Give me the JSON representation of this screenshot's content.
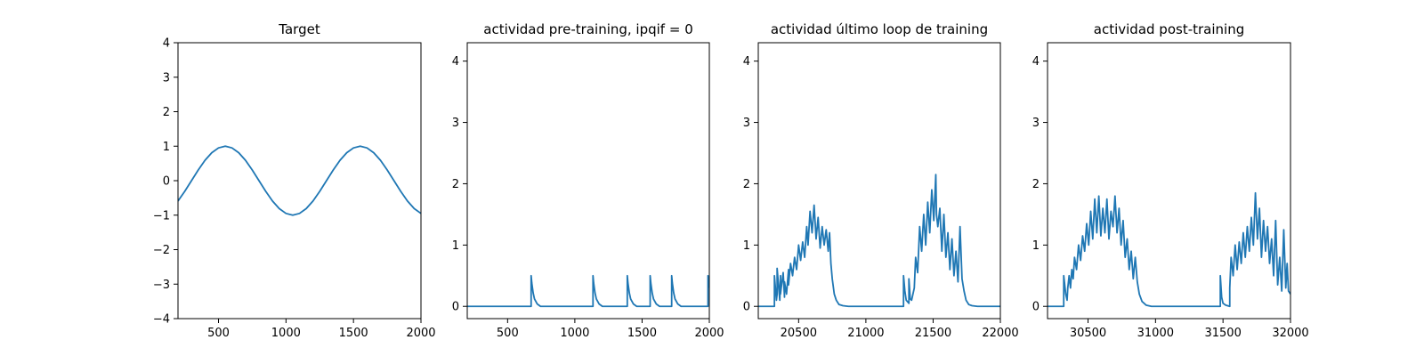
{
  "colors": {
    "line": "#1f77b4",
    "axes": "#000000",
    "background": "#ffffff"
  },
  "chart_data": [
    {
      "type": "line",
      "title": "Target",
      "xlabel": "",
      "ylabel": "",
      "xlim": [
        200,
        2000
      ],
      "ylim": [
        -4,
        4
      ],
      "xticks": [
        500,
        1000,
        1500,
        2000
      ],
      "xtick_labels": [
        "500",
        "1000",
        "1500",
        "2000"
      ],
      "yticks": [
        -4,
        -3,
        -2,
        -1,
        0,
        1,
        2,
        3,
        4
      ],
      "ytick_labels": [
        "−4",
        "−3",
        "−2",
        "−1",
        "0",
        "1",
        "2",
        "3",
        "4"
      ],
      "grid": false,
      "series": [
        {
          "x": [
            200,
            250,
            300,
            350,
            400,
            450,
            500,
            550,
            600,
            650,
            700,
            750,
            800,
            850,
            900,
            950,
            1000,
            1050,
            1100,
            1150,
            1200,
            1250,
            1300,
            1350,
            1400,
            1450,
            1500,
            1550,
            1600,
            1650,
            1700,
            1750,
            1800,
            1850,
            1900,
            1950,
            2000
          ],
          "y": [
            -0.59,
            -0.31,
            0.0,
            0.31,
            0.59,
            0.81,
            0.95,
            1.0,
            0.95,
            0.81,
            0.59,
            0.31,
            0.0,
            -0.31,
            -0.59,
            -0.81,
            -0.95,
            -1.0,
            -0.95,
            -0.81,
            -0.59,
            -0.31,
            0.0,
            0.31,
            0.59,
            0.81,
            0.95,
            1.0,
            0.95,
            0.81,
            0.59,
            0.31,
            0.0,
            -0.31,
            -0.59,
            -0.81,
            -0.95
          ]
        }
      ]
    },
    {
      "type": "line",
      "title": "actividad pre-training, ipqif = 0",
      "xlabel": "",
      "ylabel": "",
      "xlim": [
        200,
        2000
      ],
      "ylim": [
        -0.2,
        4.3
      ],
      "xticks": [
        500,
        1000,
        1500,
        2000
      ],
      "xtick_labels": [
        "500",
        "1000",
        "1500",
        "2000"
      ],
      "yticks": [
        0,
        1,
        2,
        3,
        4
      ],
      "ytick_labels": [
        "0",
        "1",
        "2",
        "3",
        "4"
      ],
      "grid": false,
      "series": [
        {
          "x": [
            200,
            675,
            675,
            680,
            690,
            700,
            720,
            745,
            1135,
            1135,
            1140,
            1150,
            1160,
            1180,
            1205,
            1390,
            1390,
            1395,
            1405,
            1415,
            1435,
            1460,
            1560,
            1560,
            1565,
            1575,
            1585,
            1605,
            1630,
            1720,
            1720,
            1725,
            1735,
            1745,
            1765,
            1790,
            1990,
            1990,
            1995,
            2000
          ],
          "y": [
            0,
            0,
            0.5,
            0.38,
            0.22,
            0.12,
            0.04,
            0.0,
            0,
            0.5,
            0.38,
            0.22,
            0.12,
            0.04,
            0.0,
            0,
            0.5,
            0.38,
            0.22,
            0.12,
            0.04,
            0.0,
            0,
            0.5,
            0.38,
            0.22,
            0.12,
            0.04,
            0.0,
            0,
            0.5,
            0.38,
            0.22,
            0.12,
            0.04,
            0.0,
            0,
            0.5,
            0.4,
            0.3
          ]
        }
      ]
    },
    {
      "type": "line",
      "title": "actividad último loop de training",
      "xlabel": "",
      "ylabel": "",
      "xlim": [
        20200,
        22000
      ],
      "ylim": [
        -0.2,
        4.3
      ],
      "xticks": [
        20500,
        21000,
        21500,
        22000
      ],
      "xtick_labels": [
        "20500",
        "21000",
        "21500",
        "22000"
      ],
      "yticks": [
        0,
        1,
        2,
        3,
        4
      ],
      "ytick_labels": [
        "0",
        "1",
        "2",
        "3",
        "4"
      ],
      "grid": false,
      "series": [
        {
          "x": [
            20200,
            20320,
            20320,
            20335,
            20340,
            20340,
            20360,
            20365,
            20365,
            20385,
            20395,
            20395,
            20410,
            20425,
            20425,
            20440,
            20455,
            20470,
            20485,
            20500,
            20515,
            20530,
            20545,
            20560,
            20570,
            20585,
            20600,
            20615,
            20630,
            20645,
            20660,
            20675,
            20690,
            20705,
            20720,
            20730,
            20740,
            20750,
            20765,
            20780,
            20800,
            20830,
            20870,
            21280,
            21280,
            21290,
            21300,
            21320,
            21320,
            21330,
            21340,
            21360,
            21370,
            21385,
            21400,
            21415,
            21430,
            21445,
            21460,
            21475,
            21490,
            21505,
            21520,
            21525,
            21535,
            21550,
            21565,
            21580,
            21595,
            21610,
            21625,
            21640,
            21655,
            21670,
            21685,
            21700,
            21715,
            21730,
            21745,
            21765,
            21790,
            21830,
            22000
          ],
          "y": [
            0,
            0,
            0.5,
            0.1,
            0.2,
            0.62,
            0.1,
            0.5,
            0.2,
            0.55,
            0.15,
            0.4,
            0.2,
            0.6,
            0.35,
            0.7,
            0.5,
            0.8,
            0.6,
            1.0,
            0.75,
            1.05,
            0.8,
            1.3,
            1.0,
            1.55,
            1.2,
            1.65,
            1.1,
            1.45,
            0.95,
            1.3,
            1.0,
            1.25,
            0.9,
            1.2,
            0.7,
            0.45,
            0.2,
            0.1,
            0.03,
            0.01,
            0,
            0,
            0.5,
            0.25,
            0.1,
            0.05,
            0.45,
            0.12,
            0.1,
            0.3,
            0.8,
            0.55,
            1.3,
            0.9,
            1.5,
            1.0,
            1.7,
            1.2,
            1.9,
            1.4,
            2.15,
            1.5,
            1.3,
            1.6,
            0.9,
            1.5,
            0.8,
            1.2,
            0.6,
            1.1,
            0.5,
            0.9,
            0.4,
            1.3,
            0.45,
            0.25,
            0.1,
            0.03,
            0.01,
            0,
            0
          ]
        }
      ]
    },
    {
      "type": "line",
      "title": "actividad post-training",
      "xlabel": "",
      "ylabel": "",
      "xlim": [
        30200,
        32000
      ],
      "ylim": [
        -0.2,
        4.3
      ],
      "xticks": [
        30500,
        31000,
        31500,
        32000
      ],
      "xtick_labels": [
        "30500",
        "31000",
        "31500",
        "32000"
      ],
      "yticks": [
        0,
        1,
        2,
        3,
        4
      ],
      "ytick_labels": [
        "0",
        "1",
        "2",
        "3",
        "4"
      ],
      "grid": false,
      "series": [
        {
          "x": [
            30200,
            30320,
            30320,
            30335,
            30345,
            30350,
            30360,
            30370,
            30380,
            30390,
            30400,
            30415,
            30430,
            30445,
            30460,
            30475,
            30490,
            30505,
            30520,
            30535,
            30550,
            30565,
            30580,
            30595,
            30610,
            30625,
            30640,
            30655,
            30670,
            30685,
            30700,
            30715,
            30730,
            30745,
            30760,
            30775,
            30790,
            30805,
            30820,
            30835,
            30850,
            30865,
            30880,
            30900,
            30930,
            30970,
            31480,
            31480,
            31490,
            31500,
            31520,
            31550,
            31550,
            31560,
            31575,
            31590,
            31605,
            31620,
            31635,
            31650,
            31665,
            31680,
            31695,
            31710,
            31725,
            31740,
            31755,
            31770,
            31785,
            31800,
            31815,
            31830,
            31845,
            31860,
            31875,
            31890,
            31905,
            31920,
            31935,
            31950,
            31965,
            31975,
            31985,
            32000
          ],
          "y": [
            0,
            0,
            0.5,
            0.2,
            0.1,
            0.3,
            0.5,
            0.3,
            0.6,
            0.45,
            0.8,
            0.6,
            1.0,
            0.75,
            1.15,
            0.9,
            1.35,
            1.0,
            1.55,
            1.1,
            1.75,
            1.2,
            1.8,
            1.15,
            1.6,
            1.2,
            1.75,
            1.1,
            1.55,
            1.3,
            1.8,
            1.2,
            1.6,
            1.0,
            1.4,
            0.8,
            1.1,
            0.6,
            0.9,
            0.45,
            0.8,
            0.4,
            0.2,
            0.08,
            0.02,
            0,
            0,
            0.5,
            0.15,
            0.05,
            0.02,
            0,
            0.3,
            0.8,
            0.5,
            1.0,
            0.6,
            1.05,
            0.7,
            1.2,
            0.8,
            1.3,
            0.9,
            1.45,
            1.0,
            1.85,
            1.1,
            1.6,
            0.8,
            1.4,
            0.9,
            1.3,
            0.7,
            1.1,
            0.5,
            1.4,
            0.35,
            0.8,
            0.25,
            1.25,
            0.3,
            0.7,
            0.25,
            0.2
          ]
        }
      ]
    }
  ]
}
